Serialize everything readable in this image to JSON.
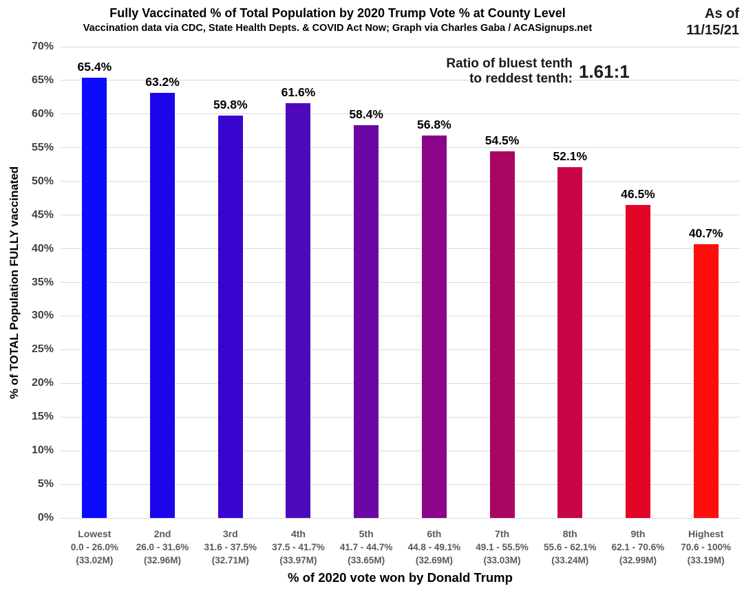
{
  "header": {
    "title": "Fully Vaccinated % of Total Population by 2020 Trump Vote % at County Level",
    "subtitle": "Vaccination data via CDC, State Health Depts. & COVID Act Now; Graph via Charles Gaba / ACASignups.net",
    "as_of_label": "As of",
    "as_of_date": "11/15/21"
  },
  "annotation": {
    "line1": "Ratio of bluest tenth",
    "line2": "to reddest tenth:",
    "ratio": "1.61:1"
  },
  "chart_data": {
    "type": "bar",
    "title": "Fully Vaccinated % of Total Population by 2020 Trump Vote % at County Level",
    "subtitle": "Vaccination data via CDC, State Health Depts. & COVID Act Now; Graph via Charles Gaba / ACASignups.net",
    "categories": [
      "Lowest",
      "2nd",
      "3rd",
      "4th",
      "5th",
      "6th",
      "7th",
      "8th",
      "9th",
      "Highest"
    ],
    "category_ranges": [
      "0.0 - 26.0%",
      "26.0 - 31.6%",
      "31.6 - 37.5%",
      "37.5 - 41.7%",
      "41.7 - 44.7%",
      "44.8 - 49.1%",
      "49.1 - 55.5%",
      "55.6 - 62.1%",
      "62.1 - 70.6%",
      "70.6 - 100%"
    ],
    "category_populations": [
      "(33.02M)",
      "(32.96M)",
      "(32.71M)",
      "(33.97M)",
      "(33.65M)",
      "(32.69M)",
      "(33.03M)",
      "(33.24M)",
      "(32.99M)",
      "(33.19M)"
    ],
    "values": [
      65.4,
      63.2,
      59.8,
      61.6,
      58.4,
      56.8,
      54.5,
      52.1,
      46.5,
      40.7
    ],
    "value_labels": [
      "65.4%",
      "63.2%",
      "59.8%",
      "61.6%",
      "58.4%",
      "56.8%",
      "54.5%",
      "52.1%",
      "46.5%",
      "40.7%"
    ],
    "bar_colors": [
      "#0b0bff",
      "#1b06ec",
      "#3804cf",
      "#4e09bc",
      "#6b07a4",
      "#8a0588",
      "#a90563",
      "#c70545",
      "#e30427",
      "#ff0d0d"
    ],
    "xlabel": "% of 2020 vote won by Donald Trump",
    "ylabel": "% of TOTAL Population FULLY vaccinated",
    "ylim": [
      0,
      70
    ],
    "ytick_step": 5,
    "ytick_suffix": "%",
    "grid": "horizontal",
    "gridline_color": "#d9d9d9",
    "legend": "none"
  }
}
